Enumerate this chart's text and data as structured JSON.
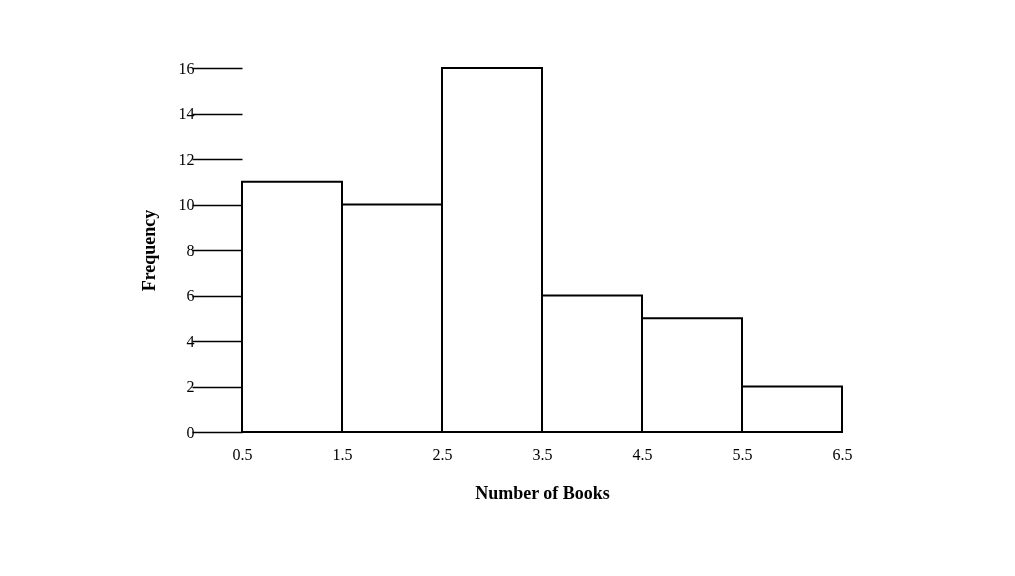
{
  "chart_data": {
    "type": "histogram",
    "xlabel": "Number of Books",
    "ylabel": "Frequency",
    "bins": [
      0.5,
      1.5,
      2.5,
      3.5,
      4.5,
      5.5,
      6.5
    ],
    "values": [
      11,
      10,
      16,
      6,
      5,
      2
    ],
    "color": "#ffffff",
    "xlim": [
      0.5,
      6.5
    ],
    "xticks": [
      0.5,
      1.5,
      2.5,
      3.5,
      4.5,
      5.5,
      6.5
    ],
    "ylim": [
      0,
      16
    ],
    "yticks": [
      0,
      2,
      4,
      6,
      8,
      10,
      12,
      14,
      16
    ],
    "grid": false
  }
}
